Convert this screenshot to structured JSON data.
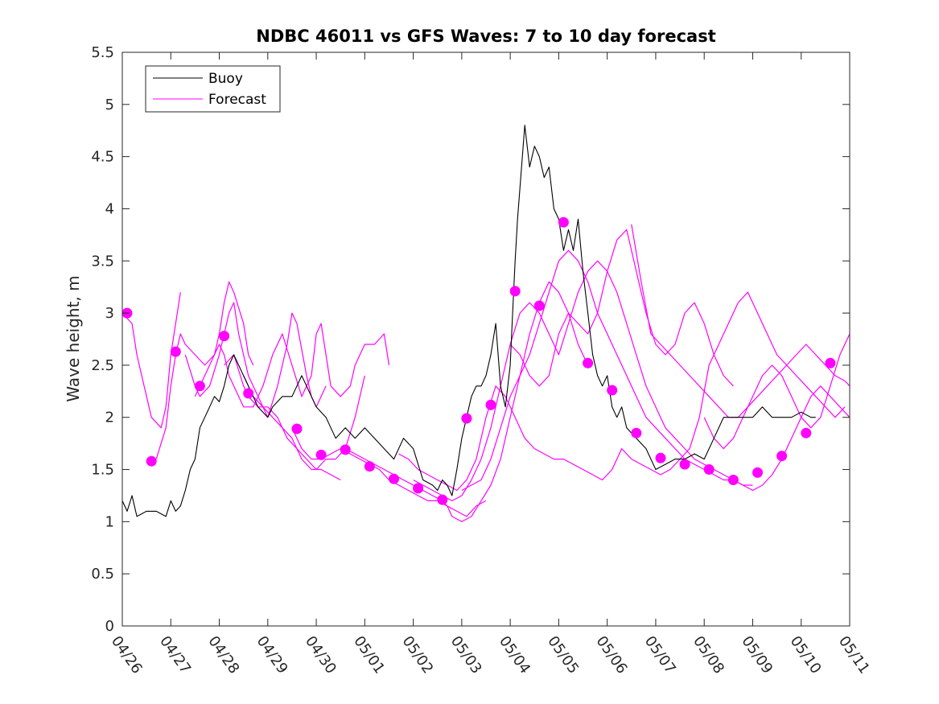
{
  "chart_data": {
    "type": "line",
    "title": "NDBC 46011 vs GFS Waves: 7 to 10 day forecast",
    "xlabel": "",
    "ylabel": "Wave height, m",
    "ylim": [
      0,
      5.5
    ],
    "xlim": [
      "04/26",
      "05/11"
    ],
    "y_ticks": [
      "0",
      "0.5",
      "1",
      "1.5",
      "2",
      "2.5",
      "3",
      "3.5",
      "4",
      "4.5",
      "5",
      "5.5"
    ],
    "x_ticks": [
      "04/26",
      "04/27",
      "04/28",
      "04/29",
      "04/30",
      "05/01",
      "05/02",
      "05/03",
      "05/04",
      "05/05",
      "05/06",
      "05/07",
      "05/08",
      "05/09",
      "05/10",
      "05/11"
    ],
    "grid": false,
    "legend": {
      "placement": "top-left",
      "entries": [
        "Buoy",
        "Forecast"
      ]
    },
    "colors": {
      "buoy": "#000000",
      "forecast": "#ff00ff"
    },
    "series": [
      {
        "name": "Buoy",
        "style": "line",
        "color": "#000000",
        "x_days": [
          0,
          0.1,
          0.2,
          0.3,
          0.5,
          0.7,
          0.9,
          1.0,
          1.1,
          1.2,
          1.3,
          1.4,
          1.5,
          1.6,
          1.7,
          1.8,
          1.9,
          2.0,
          2.1,
          2.2,
          2.3,
          2.4,
          2.6,
          2.8,
          3.0,
          3.1,
          3.3,
          3.5,
          3.7,
          3.8,
          3.9,
          4.0,
          4.2,
          4.4,
          4.6,
          4.8,
          5.0,
          5.2,
          5.4,
          5.6,
          5.8,
          6.0,
          6.2,
          6.4,
          6.5,
          6.6,
          6.7,
          6.8,
          6.9,
          7.0,
          7.1,
          7.2,
          7.3,
          7.4,
          7.5,
          7.6,
          7.7,
          7.8,
          7.9,
          8.0,
          8.05,
          8.1,
          8.15,
          8.2,
          8.3,
          8.4,
          8.5,
          8.6,
          8.7,
          8.8,
          8.9,
          9.0,
          9.1,
          9.2,
          9.3,
          9.4,
          9.5,
          9.6,
          9.7,
          9.8,
          9.9,
          10.0,
          10.1,
          10.2,
          10.3,
          10.4,
          10.6,
          10.8,
          11.0,
          11.2,
          11.4,
          11.6,
          11.8,
          12.0,
          12.2,
          12.4,
          12.6,
          12.8,
          13.0,
          13.2,
          13.4,
          13.6,
          13.8,
          14.0,
          14.2,
          14.3
        ],
        "values": [
          1.2,
          1.1,
          1.25,
          1.05,
          1.1,
          1.1,
          1.05,
          1.2,
          1.1,
          1.15,
          1.3,
          1.5,
          1.6,
          1.9,
          2.0,
          2.1,
          2.2,
          2.15,
          2.3,
          2.5,
          2.6,
          2.5,
          2.3,
          2.1,
          2.0,
          2.1,
          2.2,
          2.2,
          2.4,
          2.3,
          2.2,
          2.1,
          2.0,
          1.8,
          1.9,
          1.8,
          1.9,
          1.8,
          1.7,
          1.6,
          1.8,
          1.7,
          1.4,
          1.35,
          1.3,
          1.4,
          1.35,
          1.25,
          1.5,
          1.8,
          2.0,
          2.2,
          2.3,
          2.3,
          2.4,
          2.6,
          2.9,
          2.3,
          2.1,
          2.5,
          3.0,
          3.5,
          3.9,
          4.2,
          4.8,
          4.4,
          4.6,
          4.5,
          4.3,
          4.4,
          4.0,
          3.9,
          3.6,
          3.8,
          3.6,
          3.9,
          3.4,
          3.0,
          2.6,
          2.4,
          2.3,
          2.4,
          2.1,
          2.0,
          2.1,
          1.9,
          1.8,
          1.7,
          1.5,
          1.55,
          1.6,
          1.6,
          1.65,
          1.6,
          1.8,
          2.0,
          2.0,
          2.0,
          2.0,
          2.1,
          2.0,
          2.0,
          2.0,
          2.05,
          2.0,
          2.0
        ]
      },
      {
        "name": "Forecast",
        "style": "lines",
        "color": "#ff00ff",
        "lines": [
          {
            "x_days": [
              0,
              0.2,
              0.3,
              0.4,
              0.6,
              0.8,
              0.9,
              1.0,
              1.1,
              1.2
            ],
            "values": [
              3.0,
              2.9,
              2.6,
              2.4,
              2.0,
              1.9,
              2.1,
              2.6,
              2.9,
              3.2
            ]
          },
          {
            "x_days": [
              0.7,
              0.9,
              1.0,
              1.1,
              1.2,
              1.3,
              1.5,
              1.7,
              1.9,
              2.0,
              2.1,
              2.2,
              2.3,
              2.5,
              2.6,
              2.7
            ],
            "values": [
              1.6,
              1.9,
              2.3,
              2.6,
              2.8,
              2.7,
              2.6,
              2.5,
              2.6,
              2.8,
              3.1,
              3.3,
              3.2,
              2.9,
              2.6,
              2.5
            ]
          },
          {
            "x_days": [
              1.3,
              1.5,
              1.6,
              1.8,
              2.0,
              2.1,
              2.2,
              2.3,
              2.4,
              2.6,
              2.8,
              3.0,
              3.2,
              3.4,
              3.5,
              3.6,
              3.8,
              3.9,
              4.0,
              4.1,
              4.2
            ],
            "values": [
              2.6,
              2.3,
              2.2,
              2.3,
              2.6,
              2.8,
              3.0,
              3.1,
              2.8,
              2.4,
              2.2,
              2.0,
              2.3,
              2.7,
              3.0,
              2.9,
              2.4,
              2.2,
              2.1,
              2.2,
              2.3
            ]
          },
          {
            "x_days": [
              1.5,
              1.7,
              1.9,
              2.0,
              2.1,
              2.2,
              2.4,
              2.5,
              2.7,
              2.9,
              3.1,
              3.3,
              3.5,
              3.7,
              3.9,
              4.0,
              4.1,
              4.2,
              4.3,
              4.5,
              4.7,
              4.8,
              5.0,
              5.2,
              5.4,
              5.5
            ],
            "values": [
              2.2,
              2.4,
              2.6,
              2.7,
              2.6,
              2.4,
              2.2,
              2.1,
              2.1,
              2.3,
              2.6,
              2.8,
              2.5,
              2.2,
              2.4,
              2.8,
              2.9,
              2.6,
              2.3,
              2.2,
              2.3,
              2.5,
              2.7,
              2.7,
              2.8,
              2.5
            ]
          },
          {
            "x_days": [
              2.1,
              2.3,
              2.5,
              2.6,
              2.8,
              3.0,
              3.2,
              3.4,
              3.6,
              3.8,
              4.0,
              4.2,
              4.4,
              4.6,
              4.8,
              5.0
            ],
            "values": [
              2.5,
              2.6,
              2.3,
              2.2,
              2.1,
              2.1,
              2.0,
              1.8,
              1.7,
              1.6,
              1.5,
              1.6,
              1.6,
              1.7,
              2.0,
              2.4
            ]
          },
          {
            "x_days": [
              2.5,
              2.7,
              2.9,
              3.1,
              3.3,
              3.5,
              3.7,
              3.9,
              4.1,
              4.3,
              4.5
            ],
            "values": [
              2.4,
              2.2,
              2.1,
              2.0,
              1.9,
              1.8,
              1.6,
              1.5,
              1.5,
              1.45,
              1.4
            ]
          },
          {
            "x_days": [
              3.5,
              3.7,
              3.9,
              4.1,
              4.3,
              4.5,
              4.7,
              4.9,
              5.1,
              5.3,
              5.5,
              5.7,
              5.9,
              6.1,
              6.3,
              6.5,
              6.7,
              6.9,
              7.1,
              7.3,
              7.5
            ],
            "values": [
              1.9,
              1.7,
              1.6,
              1.6,
              1.65,
              1.7,
              1.65,
              1.6,
              1.55,
              1.5,
              1.4,
              1.35,
              1.3,
              1.25,
              1.2,
              1.2,
              1.15,
              1.1,
              1.05,
              1.15,
              1.2
            ]
          },
          {
            "x_days": [
              4.6,
              4.8,
              5.0,
              5.2,
              5.4,
              5.6,
              5.8,
              6.0,
              6.2,
              6.4,
              6.6,
              6.7,
              6.8,
              7.0,
              7.2,
              7.4,
              7.6,
              7.8,
              8.0,
              8.2,
              8.4,
              8.6,
              8.8,
              9.0,
              9.2,
              9.4,
              9.6
            ],
            "values": [
              1.7,
              1.65,
              1.6,
              1.55,
              1.5,
              1.45,
              1.4,
              1.35,
              1.3,
              1.25,
              1.2,
              1.15,
              1.05,
              1.0,
              1.05,
              1.2,
              1.35,
              1.6,
              2.0,
              2.4,
              2.8,
              3.1,
              3.3,
              3.2,
              3.0,
              2.7,
              2.5
            ]
          },
          {
            "x_days": [
              5.7,
              5.9,
              6.1,
              6.3,
              6.5,
              6.7,
              6.9,
              7.1,
              7.3,
              7.5,
              7.7,
              7.9,
              8.1,
              8.3,
              8.5,
              8.7,
              8.9,
              9.1,
              9.3,
              9.5,
              9.7,
              9.9,
              10.1,
              10.3,
              10.5,
              10.7,
              10.9,
              11.1,
              11.3,
              11.5,
              11.7,
              11.9,
              12.1,
              12.3,
              12.5,
              12.7,
              12.9,
              13.1,
              13.3,
              13.5,
              13.7,
              13.9,
              14.1,
              14.3,
              14.5,
              14.7,
              14.9
            ],
            "values": [
              1.65,
              1.6,
              1.5,
              1.45,
              1.4,
              1.35,
              1.3,
              1.4,
              1.6,
              2.0,
              2.3,
              2.2,
              2.0,
              1.8,
              1.7,
              1.65,
              1.6,
              1.6,
              1.55,
              1.5,
              1.45,
              1.4,
              1.5,
              1.7,
              1.6,
              1.55,
              1.5,
              1.45,
              1.5,
              1.6,
              1.7,
              2.0,
              2.5,
              2.7,
              2.9,
              3.1,
              3.2,
              3.0,
              2.8,
              2.6,
              2.5,
              2.4,
              2.3,
              2.2,
              2.1,
              2.0,
              2.1
            ]
          },
          {
            "x_days": [
              6.0,
              6.2,
              6.4,
              6.6,
              6.8,
              7.0,
              7.2,
              7.4,
              7.6,
              7.8,
              8.0,
              8.2,
              8.4,
              8.6,
              8.8,
              9.0,
              9.2,
              9.4,
              9.6,
              9.8,
              10.0,
              10.2,
              10.4,
              10.6,
              10.8,
              11.0,
              11.2,
              11.4,
              11.6,
              11.8,
              12.0,
              12.2,
              12.4,
              12.6,
              12.8,
              13.0,
              13.2,
              13.4,
              13.6,
              13.8,
              14.0,
              14.2,
              14.4,
              14.6,
              14.8,
              15.0
            ],
            "values": [
              1.4,
              1.35,
              1.3,
              1.25,
              1.2,
              1.25,
              1.4,
              1.6,
              1.9,
              2.3,
              2.7,
              3.0,
              3.1,
              3.0,
              2.8,
              2.6,
              2.9,
              3.2,
              3.4,
              3.5,
              3.4,
              3.2,
              2.9,
              2.6,
              2.3,
              2.1,
              1.9,
              1.8,
              1.7,
              1.6,
              1.55,
              1.5,
              1.45,
              1.4,
              1.35,
              1.3,
              1.35,
              1.45,
              1.6,
              1.8,
              2.0,
              2.2,
              2.3,
              2.2,
              2.1,
              2.0
            ]
          },
          {
            "x_days": [
              7.0,
              7.2,
              7.4,
              7.6,
              7.8,
              8.0,
              8.2,
              8.4,
              8.6,
              8.8,
              9.0,
              9.2,
              9.4,
              9.6,
              9.8,
              10.0,
              10.2,
              10.4,
              10.6,
              10.8,
              11.0,
              11.2,
              11.4,
              11.6,
              11.8,
              12.0,
              12.2,
              12.4,
              12.6,
              12.8,
              13.0
            ],
            "values": [
              1.3,
              1.35,
              1.4,
              1.6,
              1.9,
              2.2,
              2.4,
              2.6,
              2.9,
              3.2,
              3.5,
              3.6,
              3.5,
              3.3,
              3.0,
              2.8,
              2.6,
              2.4,
              2.2,
              2.0,
              1.9,
              1.8,
              1.7,
              1.6,
              1.55,
              1.5,
              1.45,
              1.4,
              1.4,
              1.35,
              1.35
            ]
          },
          {
            "x_days": [
              8.0,
              8.2,
              8.4,
              8.6,
              8.8,
              9.0,
              9.2,
              9.4,
              9.6,
              9.8,
              10.0,
              10.2,
              10.4,
              10.6,
              10.8,
              11.0,
              11.2,
              11.4,
              11.6,
              11.8,
              12.0,
              12.2,
              12.4,
              12.6
            ],
            "values": [
              2.7,
              2.6,
              2.4,
              2.3,
              2.4,
              2.8,
              3.0,
              2.9,
              2.8,
              3.0,
              3.4,
              3.7,
              3.8,
              3.4,
              3.0,
              2.7,
              2.6,
              2.7,
              3.0,
              3.1,
              2.9,
              2.6,
              2.4,
              2.3
            ]
          },
          {
            "x_days": [
              10.5,
              10.7,
              10.9,
              11.1,
              11.3,
              11.5,
              11.7,
              11.9,
              12.1,
              12.3,
              12.5,
              12.7,
              12.9,
              13.1,
              13.3,
              13.5,
              13.7,
              13.9,
              14.1,
              14.3,
              14.5,
              14.7,
              14.9,
              15.0
            ],
            "values": [
              3.85,
              3.3,
              2.8,
              2.7,
              2.6,
              2.5,
              2.4,
              2.3,
              2.2,
              2.1,
              2.0,
              2.0,
              2.1,
              2.2,
              2.3,
              2.4,
              2.5,
              2.6,
              2.7,
              2.6,
              2.5,
              2.4,
              2.35,
              2.3
            ]
          },
          {
            "x_days": [
              12.0,
              12.2,
              12.4,
              12.6,
              12.8,
              13.0,
              13.2,
              13.4,
              13.6,
              13.8,
              14.0,
              14.2,
              14.4,
              14.6,
              14.8,
              15.0
            ],
            "values": [
              2.0,
              1.8,
              1.7,
              1.8,
              2.0,
              2.2,
              2.4,
              2.5,
              2.4,
              2.2,
              2.0,
              1.9,
              2.0,
              2.3,
              2.6,
              2.8
            ]
          }
        ]
      },
      {
        "name": "Forecast markers",
        "style": "markers",
        "color": "#ff00ff",
        "x_days": [
          0.1,
          0.6,
          1.1,
          1.6,
          2.1,
          2.6,
          3.6,
          4.1,
          4.6,
          5.1,
          5.6,
          6.1,
          6.6,
          7.1,
          7.6,
          8.1,
          8.6,
          9.1,
          9.6,
          10.1,
          10.6,
          11.1,
          11.6,
          12.1,
          12.6,
          13.1,
          13.6,
          14.1,
          14.6
        ],
        "values": [
          3.0,
          1.58,
          2.63,
          2.3,
          2.78,
          2.23,
          1.89,
          1.64,
          1.69,
          1.53,
          1.41,
          1.32,
          1.21,
          1.99,
          2.12,
          3.21,
          3.07,
          3.87,
          2.52,
          2.26,
          1.85,
          1.61,
          1.55,
          1.5,
          1.4,
          1.47,
          1.63,
          1.85,
          2.52
        ]
      }
    ]
  }
}
